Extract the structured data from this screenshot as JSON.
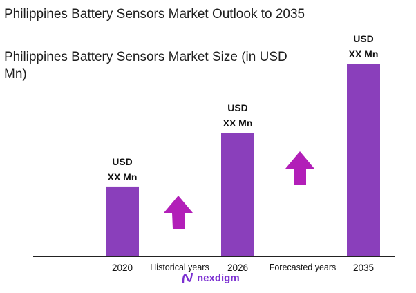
{
  "chart_data": {
    "type": "bar",
    "title": "Philippines Battery Sensors Market Outlook to 2035",
    "subtitle": "Philippines Battery Sensors Market Size (in USD Mn)",
    "categories": [
      "2020",
      "2026",
      "2035"
    ],
    "values": [
      36,
      64,
      100
    ],
    "data_labels": [
      [
        "USD",
        "XX Mn"
      ],
      [
        "USD",
        "XX Mn"
      ],
      [
        "USD",
        "XX Mn"
      ]
    ],
    "annotations": [
      "Historical years",
      "Forecasted years"
    ],
    "xlabel": "",
    "ylabel": "",
    "ylim": [
      0,
      100
    ],
    "grid": false,
    "legend": "none",
    "colors": {
      "bar": "#8a3fbb",
      "arrow": "#b21fb8",
      "axis": "#222222"
    }
  },
  "logo": {
    "text": "nexdigm",
    "color": "#7b2fd1"
  }
}
